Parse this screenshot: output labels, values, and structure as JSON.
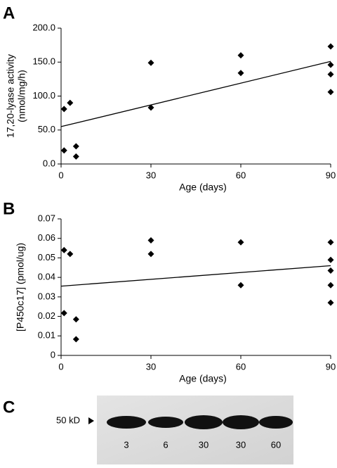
{
  "chart_data": [
    {
      "type": "scatter",
      "panel": "A",
      "xlabel": "Age (days)",
      "ylabel": [
        "17,20-lyase activity",
        "(nmol/mg/h)"
      ],
      "x": [
        1,
        1,
        3,
        5,
        5,
        30,
        30,
        60,
        60,
        90,
        90,
        90,
        90
      ],
      "values": [
        81,
        20,
        90,
        26,
        11,
        149,
        83,
        160,
        134,
        173,
        146,
        132,
        106
      ],
      "trend_x": [
        0,
        90
      ],
      "trend_y": [
        55,
        151
      ],
      "color": "#000000",
      "xlim": [
        0,
        90
      ],
      "xticks": [
        0,
        30,
        60,
        90
      ],
      "ylim": [
        0,
        200
      ],
      "yticks": [
        {
          "value": 0,
          "label": "0.0"
        },
        {
          "value": 50,
          "label": "50.0"
        },
        {
          "value": 100,
          "label": "100.0"
        },
        {
          "value": 150,
          "label": "150.0"
        },
        {
          "value": 200,
          "label": "200.0"
        }
      ]
    },
    {
      "type": "scatter",
      "panel": "B",
      "xlabel": "Age (days)",
      "ylabel": [
        "[P450c17] (pmol/ug)"
      ],
      "x": [
        1,
        1,
        3,
        5,
        5,
        30,
        30,
        60,
        60,
        90,
        90,
        90,
        90,
        90
      ],
      "values": [
        0.054,
        0.0217,
        0.052,
        0.0185,
        0.0083,
        0.059,
        0.052,
        0.058,
        0.036,
        0.058,
        0.049,
        0.0435,
        0.036,
        0.027
      ],
      "trend_x": [
        0,
        90
      ],
      "trend_y": [
        0.0355,
        0.046
      ],
      "color": "#000000",
      "xlim": [
        0,
        90
      ],
      "xticks": [
        0,
        30,
        60,
        90
      ],
      "ylim": [
        0,
        0.07
      ],
      "yticks": [
        0,
        0.01,
        0.02,
        0.03,
        0.04,
        0.05,
        0.06,
        0.07
      ]
    }
  ],
  "blot": {
    "panel": "C",
    "marker": "50 kD",
    "lanes": [
      "3",
      "6",
      "30",
      "30",
      "60"
    ]
  }
}
